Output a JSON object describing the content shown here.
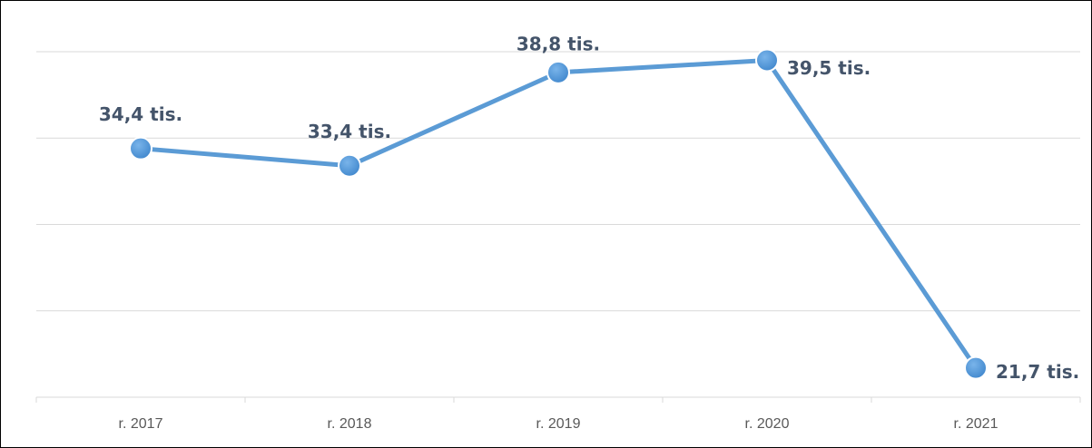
{
  "chart_data": {
    "type": "line",
    "categories": [
      "r. 2017",
      "r. 2018",
      "r. 2019",
      "r. 2020",
      "r. 2021"
    ],
    "series": [
      {
        "color": "#5b9bd5",
        "values": [
          34.4,
          33.4,
          38.8,
          39.5,
          21.7
        ],
        "value_labels": [
          "34,4 tis.",
          "33,4 tis.",
          "38,8 tis.",
          "39,5 tis.",
          "21,7 tis."
        ]
      }
    ],
    "ylim": [
      20,
      40
    ],
    "yticks": [
      20,
      25,
      30,
      35,
      40
    ],
    "grid": true
  }
}
